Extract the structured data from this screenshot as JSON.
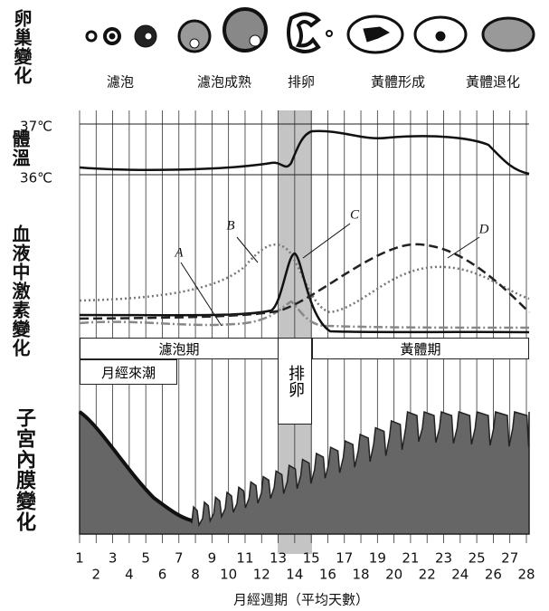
{
  "ovary": {
    "label": "卵巢變化",
    "stages": [
      "濾泡",
      "濾泡成熟",
      "排卵",
      "黃體形成",
      "黃體退化"
    ]
  },
  "temperature": {
    "label": "體溫",
    "ticks": [
      "37℃",
      "36℃"
    ]
  },
  "hormones": {
    "label": "血液中激素變化",
    "curves": [
      "A",
      "B",
      "C",
      "D"
    ]
  },
  "phases": {
    "follicular": "濾泡期",
    "luteal": "黃體期",
    "menstruation": "月經來潮",
    "ovulation": "排卵"
  },
  "endometrium": {
    "label": "子宮內膜變化"
  },
  "x_axis": {
    "days": [
      1,
      2,
      3,
      4,
      5,
      6,
      7,
      8,
      9,
      10,
      11,
      12,
      13,
      14,
      15,
      16,
      17,
      18,
      19,
      20,
      21,
      22,
      23,
      24,
      25,
      26,
      27,
      28
    ],
    "title": "月經週期（平均天數）"
  }
}
